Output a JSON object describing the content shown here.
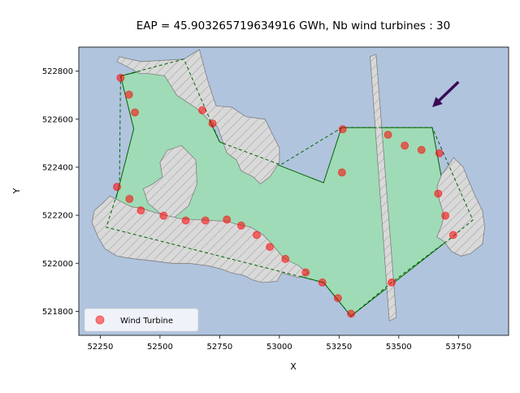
{
  "chart_data": {
    "type": "scatter",
    "title": "EAP = 45.903265719634916 GWh, Nb wind turbines : 30",
    "xlabel": "X",
    "ylabel": "Y",
    "xlim": [
      52160,
      53960
    ],
    "ylim": [
      521700,
      522900
    ],
    "xticks": [
      52250,
      52500,
      52750,
      53000,
      53250,
      53500,
      53750
    ],
    "yticks": [
      521800,
      522000,
      522200,
      522400,
      522600,
      522800
    ],
    "xtick_labels": [
      "52250",
      "52500",
      "52750",
      "53000",
      "53250",
      "53500",
      "53750"
    ],
    "ytick_labels": [
      "521800",
      "522000",
      "522200",
      "522400",
      "522600",
      "522800"
    ],
    "grid": false,
    "legend_position": "lower-left",
    "colors": {
      "background": "#b0c4de",
      "area_fill": "#9fdbb6",
      "boundary": "#006400",
      "exclusion_fill": "#d9d9d9",
      "exclusion_edge": "#7f7f7f",
      "turbine": "#ff0000",
      "wind_arrow": "#3b0a55"
    },
    "series": [
      {
        "name": "Wind Turbine",
        "marker": "circle",
        "points": [
          [
            52335,
            522772
          ],
          [
            52370,
            522702
          ],
          [
            52395,
            522628
          ],
          [
            52320,
            522318
          ],
          [
            52372,
            522268
          ],
          [
            52420,
            522220
          ],
          [
            52515,
            522198
          ],
          [
            52608,
            522178
          ],
          [
            52690,
            522178
          ],
          [
            52780,
            522182
          ],
          [
            52840,
            522157
          ],
          [
            52905,
            522118
          ],
          [
            52960,
            522068
          ],
          [
            53025,
            522018
          ],
          [
            53110,
            521962
          ],
          [
            53180,
            521920
          ],
          [
            53245,
            521855
          ],
          [
            53300,
            521790
          ],
          [
            52677,
            522637
          ],
          [
            52720,
            522582
          ],
          [
            53265,
            522558
          ],
          [
            53262,
            522378
          ],
          [
            53455,
            522535
          ],
          [
            53525,
            522490
          ],
          [
            53595,
            522472
          ],
          [
            53670,
            522458
          ],
          [
            53665,
            522290
          ],
          [
            53695,
            522198
          ],
          [
            53728,
            522118
          ],
          [
            53470,
            521920
          ]
        ]
      }
    ],
    "buildable_area": [
      [
        52335,
        522780
      ],
      [
        52590,
        522840
      ],
      [
        52750,
        522505
      ],
      [
        53185,
        522335
      ],
      [
        53260,
        522565
      ],
      [
        53640,
        522565
      ],
      [
        53725,
        522110
      ],
      [
        53300,
        521780
      ],
      [
        53185,
        521920
      ],
      [
        52285,
        522150
      ],
      [
        52390,
        522560
      ]
    ],
    "dashed_boundary": [
      [
        52335,
        522780
      ],
      [
        52600,
        522850
      ],
      [
        52750,
        522505
      ],
      [
        53005,
        522410
      ],
      [
        53262,
        522565
      ],
      [
        53640,
        522565
      ],
      [
        53810,
        522180
      ],
      [
        53725,
        522110
      ],
      [
        53470,
        521920
      ],
      [
        53300,
        521780
      ],
      [
        53185,
        521920
      ],
      [
        52275,
        522150
      ],
      [
        52330,
        522320
      ]
    ],
    "exclusion_zones": [
      [
        [
          52420,
          522840
        ],
        [
          52600,
          522850
        ],
        [
          52665,
          522890
        ],
        [
          52700,
          522760
        ],
        [
          52735,
          522655
        ],
        [
          52800,
          522650
        ],
        [
          52860,
          522610
        ],
        [
          52940,
          522600
        ],
        [
          53000,
          522480
        ],
        [
          53000,
          522420
        ],
        [
          52960,
          522360
        ],
        [
          52920,
          522330
        ],
        [
          52890,
          522360
        ],
        [
          52840,
          522385
        ],
        [
          52820,
          522430
        ],
        [
          52780,
          522460
        ],
        [
          52740,
          522570
        ],
        [
          52700,
          522600
        ],
        [
          52660,
          522640
        ],
        [
          52570,
          522700
        ],
        [
          52520,
          522780
        ],
        [
          52450,
          522790
        ],
        [
          52415,
          522790
        ],
        [
          52360,
          522820
        ],
        [
          52320,
          522840
        ],
        [
          52330,
          522860
        ]
      ],
      [
        [
          52530,
          522470
        ],
        [
          52590,
          522490
        ],
        [
          52650,
          522430
        ],
        [
          52655,
          522330
        ],
        [
          52620,
          522240
        ],
        [
          52560,
          522190
        ],
        [
          52510,
          522200
        ],
        [
          52450,
          522250
        ],
        [
          52430,
          522310
        ],
        [
          52470,
          522330
        ],
        [
          52510,
          522360
        ],
        [
          52500,
          522420
        ]
      ],
      [
        [
          52260,
          522250
        ],
        [
          52290,
          522280
        ],
        [
          52380,
          522235
        ],
        [
          52420,
          522230
        ],
        [
          52500,
          522205
        ],
        [
          52590,
          522185
        ],
        [
          52680,
          522180
        ],
        [
          52780,
          522175
        ],
        [
          52830,
          522160
        ],
        [
          52880,
          522150
        ],
        [
          52930,
          522120
        ],
        [
          52960,
          522090
        ],
        [
          53020,
          522020
        ],
        [
          53080,
          521990
        ],
        [
          53120,
          521960
        ],
        [
          53080,
          521940
        ],
        [
          53010,
          521960
        ],
        [
          52990,
          521925
        ],
        [
          52930,
          521920
        ],
        [
          52890,
          521930
        ],
        [
          52850,
          521950
        ],
        [
          52800,
          521960
        ],
        [
          52760,
          521975
        ],
        [
          52700,
          521990
        ],
        [
          52620,
          522000
        ],
        [
          52550,
          522000
        ],
        [
          52470,
          522010
        ],
        [
          52380,
          522020
        ],
        [
          52320,
          522030
        ],
        [
          52270,
          522060
        ],
        [
          52240,
          522110
        ],
        [
          52215,
          522170
        ],
        [
          52225,
          522220
        ]
      ],
      [
        [
          53380,
          522860
        ],
        [
          53405,
          522870
        ],
        [
          53490,
          521775
        ],
        [
          53460,
          521760
        ]
      ],
      [
        [
          53710,
          522410
        ],
        [
          53730,
          522440
        ],
        [
          53770,
          522400
        ],
        [
          53790,
          522350
        ],
        [
          53820,
          522280
        ],
        [
          53850,
          522220
        ],
        [
          53860,
          522150
        ],
        [
          53850,
          522080
        ],
        [
          53800,
          522040
        ],
        [
          53760,
          522030
        ],
        [
          53720,
          522050
        ],
        [
          53690,
          522090
        ],
        [
          53660,
          522110
        ],
        [
          53680,
          522160
        ],
        [
          53690,
          522200
        ],
        [
          53670,
          522260
        ],
        [
          53660,
          522320
        ],
        [
          53680,
          522370
        ]
      ]
    ],
    "wind_arrow": {
      "from": [
        53750,
        522755
      ],
      "to": [
        53640,
        522650
      ]
    }
  }
}
